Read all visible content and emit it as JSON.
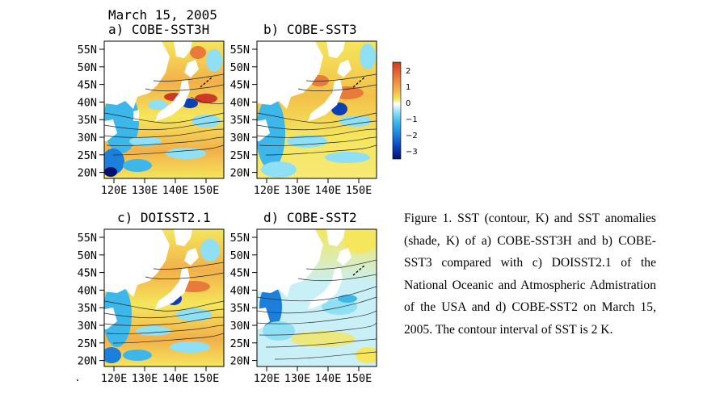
{
  "figure": {
    "date": "March 15, 2005",
    "panels": [
      {
        "label": "a) COBE-SST3H"
      },
      {
        "label": "b) COBE-SST3"
      },
      {
        "label": "c) DOISST2.1"
      },
      {
        "label": "d) COBE-SST2"
      }
    ],
    "lat_ticks": [
      "55N",
      "50N",
      "45N",
      "40N",
      "35N",
      "30N",
      "25N",
      "20N"
    ],
    "lon_ticks": [
      "120E",
      "130E",
      "140E",
      "150E"
    ],
    "colorbar": {
      "ticks": [
        "2",
        "1",
        "0",
        "−1",
        "−2",
        "−3"
      ],
      "range": [
        -3.5,
        2.5
      ],
      "colors": [
        "#08106e",
        "#0a3fb5",
        "#1c7fdc",
        "#3db7ea",
        "#8fe0f5",
        "#ffffff",
        "#f5e65c",
        "#f2b04a",
        "#e87a3a",
        "#cc3a26"
      ]
    }
  },
  "caption": "Figure 1. SST (contour, K) and SST anomalies (shade, K) of a) COBE-SST3H and b) COBE-SST3 compared with c) DOISST2.1 of the National Oceanic and Atmospheric Admistration of the USA and d) COBE-SST2 on March 15, 2005. The contour interval of SST is 2 K."
}
